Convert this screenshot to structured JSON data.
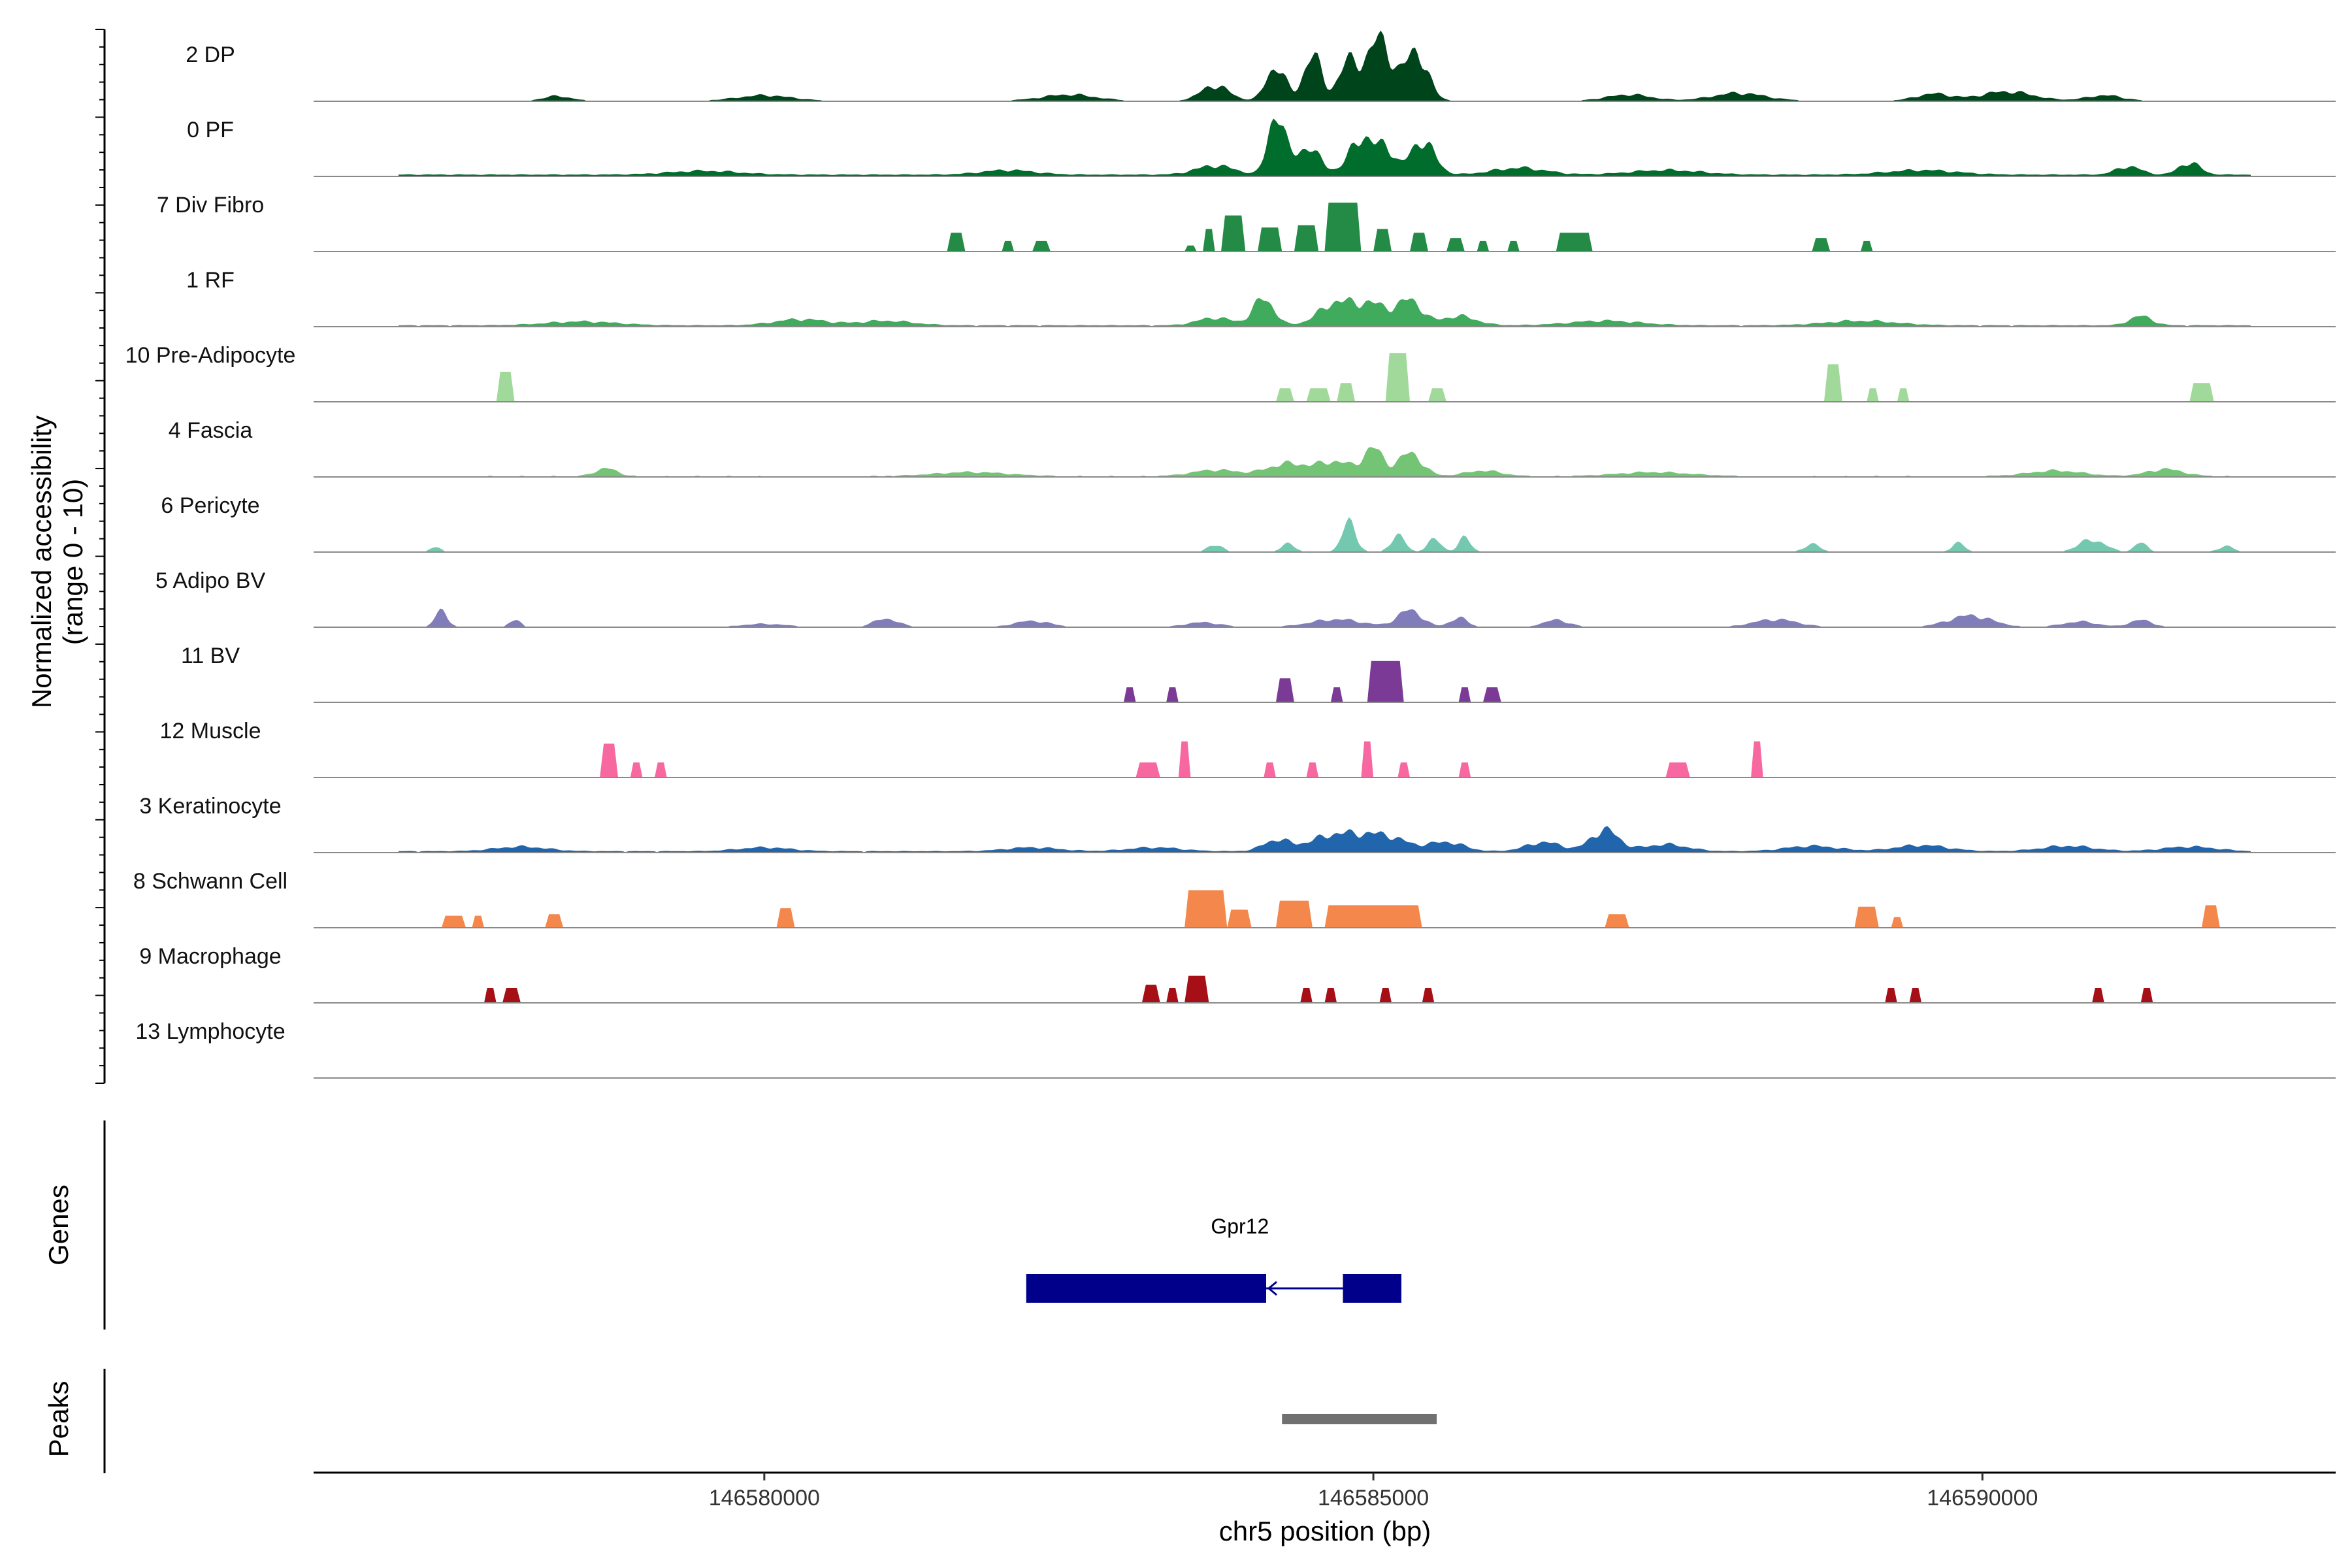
{
  "chart_data": {
    "type": "area",
    "title": "",
    "ylabel": "Normalized accessibility\n(range 0 - 10)",
    "xlabel": "chr5 position (bp)",
    "ylim": [
      0,
      10
    ],
    "xlim": [
      146576300,
      146592900
    ],
    "x_ticks": [
      146580000,
      146585000,
      146590000
    ],
    "x_tick_labels": [
      "146580000",
      "146585000",
      "146590000"
    ],
    "genes_label": "Genes",
    "peaks_label": "Peaks",
    "tracks": [
      {
        "name": "2 DP",
        "color": "#00441b",
        "style": "smooth",
        "baseline": 0.05,
        "start": 146577200,
        "end": 146591800,
        "peaks": [
          [
            146584800,
            5,
            120
          ],
          [
            146584200,
            4.5,
            110
          ],
          [
            146585050,
            8,
            140
          ],
          [
            146585350,
            6.5,
            130
          ],
          [
            146584500,
            6,
            100
          ],
          [
            146583700,
            2,
            160
          ],
          [
            146590200,
            1.2,
            300
          ],
          [
            146588000,
            1,
            300
          ],
          [
            146589600,
            0.9,
            200
          ],
          [
            146582500,
            0.8,
            300
          ],
          [
            146587100,
            0.8,
            250
          ],
          [
            146591000,
            0.7,
            200
          ],
          [
            146578300,
            0.6,
            150
          ],
          [
            146580000,
            0.7,
            300
          ]
        ]
      },
      {
        "name": "0 PF",
        "color": "#006d2c",
        "style": "smooth",
        "baseline": 0.2,
        "start": 146577000,
        "end": 146592200,
        "peaks": [
          [
            146584200,
            8,
            90
          ],
          [
            146584900,
            5,
            130
          ],
          [
            146585400,
            4.5,
            140
          ],
          [
            146585100,
            3.5,
            100
          ],
          [
            146584450,
            3.5,
            160
          ],
          [
            146583700,
            1.2,
            220
          ],
          [
            146591700,
            1.6,
            120
          ],
          [
            146591200,
            1.1,
            140
          ],
          [
            146586200,
            0.9,
            300
          ],
          [
            146589500,
            0.6,
            400
          ],
          [
            146587400,
            0.6,
            400
          ],
          [
            146582000,
            0.6,
            300
          ],
          [
            146579500,
            0.5,
            400
          ]
        ]
      },
      {
        "name": "7 Div Fibro",
        "color": "#238b45",
        "style": "block",
        "start": 146577000,
        "end": 146592200,
        "blocks": [
          [
            146581500,
            146581650,
            2.5
          ],
          [
            146581950,
            146582050,
            1.4
          ],
          [
            146582200,
            146582350,
            1.4
          ],
          [
            146583450,
            146583550,
            0.8
          ],
          [
            146583600,
            146583700,
            3
          ],
          [
            146583750,
            146583950,
            4.8
          ],
          [
            146584050,
            146584250,
            3.2
          ],
          [
            146584350,
            146584550,
            3.5
          ],
          [
            146584600,
            146584900,
            6.5
          ],
          [
            146585000,
            146585150,
            3
          ],
          [
            146585300,
            146585450,
            2.5
          ],
          [
            146585600,
            146585750,
            1.8
          ],
          [
            146585850,
            146585950,
            1.4
          ],
          [
            146586100,
            146586200,
            1.4
          ],
          [
            146586500,
            146586800,
            2.5
          ],
          [
            146588600,
            146588750,
            1.8
          ],
          [
            146589000,
            146589100,
            1.4
          ]
        ]
      },
      {
        "name": "1 RF",
        "color": "#41ab5d",
        "style": "smooth",
        "baseline": 0.15,
        "start": 146577000,
        "end": 146592200,
        "peaks": [
          [
            146584100,
            3.5,
            120
          ],
          [
            146584700,
            3,
            200
          ],
          [
            146585000,
            2.6,
            180
          ],
          [
            146585300,
            3.2,
            140
          ],
          [
            146583700,
            1,
            200
          ],
          [
            146585700,
            1.2,
            200
          ],
          [
            146580300,
            0.8,
            300
          ],
          [
            146581000,
            0.6,
            300
          ],
          [
            146591300,
            1.2,
            130
          ],
          [
            146589000,
            0.6,
            400
          ],
          [
            146586900,
            0.6,
            400
          ],
          [
            146578500,
            0.5,
            400
          ]
        ]
      },
      {
        "name": "10 Pre-Adipocyte",
        "color": "#a1d99b",
        "style": "block",
        "start": 146577000,
        "end": 146592200,
        "blocks": [
          [
            146577800,
            146577950,
            4
          ],
          [
            146584200,
            146584350,
            1.8
          ],
          [
            146584450,
            146584650,
            1.8
          ],
          [
            146584700,
            146584850,
            2.5
          ],
          [
            146585100,
            146585300,
            6.5
          ],
          [
            146585450,
            146585600,
            1.8
          ],
          [
            146588700,
            146588850,
            5
          ],
          [
            146589050,
            146589150,
            1.8
          ],
          [
            146589300,
            146589400,
            1.8
          ],
          [
            146591700,
            146591900,
            2.5
          ]
        ]
      },
      {
        "name": "4 Fascia",
        "color": "#74c476",
        "style": "smooth",
        "baseline": 0.1,
        "start": 146577000,
        "end": 146592200,
        "peaks": [
          [
            146585000,
            3.5,
            110
          ],
          [
            146585300,
            3,
            140
          ],
          [
            146584300,
            1.6,
            250
          ],
          [
            146584700,
            1.8,
            200
          ],
          [
            146583700,
            0.8,
            250
          ],
          [
            146585900,
            0.7,
            200
          ],
          [
            146578700,
            1,
            120
          ],
          [
            146591500,
            0.9,
            200
          ],
          [
            146590600,
            0.7,
            300
          ],
          [
            146587300,
            0.5,
            400
          ],
          [
            146581700,
            0.5,
            400
          ]
        ]
      },
      {
        "name": "6 Pericyte",
        "color": "#74c8b0",
        "style": "smooth",
        "baseline": 0.0,
        "start": 146577000,
        "end": 146592200,
        "peaks": [
          [
            146584800,
            3.8,
            80
          ],
          [
            146585200,
            2.2,
            80
          ],
          [
            146585500,
            1.6,
            80
          ],
          [
            146584300,
            1,
            80
          ],
          [
            146585750,
            1.8,
            70
          ],
          [
            146583700,
            1,
            80
          ],
          [
            146590900,
            1.6,
            150
          ],
          [
            146588600,
            1,
            90
          ],
          [
            146589800,
            1.2,
            70
          ],
          [
            146591300,
            1.2,
            70
          ],
          [
            146577300,
            0.6,
            60
          ],
          [
            146592000,
            0.7,
            90
          ]
        ]
      },
      {
        "name": "5 Adipo BV",
        "color": "#807dba",
        "style": "smooth",
        "baseline": 0.0,
        "start": 146577000,
        "end": 146592200,
        "peaks": [
          [
            146577350,
            2.2,
            70
          ],
          [
            146577950,
            1,
            60
          ],
          [
            146580000,
            0.4,
            250
          ],
          [
            146581000,
            1.1,
            140
          ],
          [
            146582200,
            0.8,
            200
          ],
          [
            146583600,
            0.6,
            200
          ],
          [
            146584700,
            1,
            300
          ],
          [
            146585300,
            2.2,
            140
          ],
          [
            146585700,
            1.2,
            100
          ],
          [
            146586500,
            0.9,
            150
          ],
          [
            146588300,
            1,
            250
          ],
          [
            146589900,
            1.5,
            250
          ],
          [
            146590800,
            0.7,
            200
          ],
          [
            146591300,
            0.9,
            130
          ]
        ]
      },
      {
        "name": "11 BV",
        "color": "#7a3a96",
        "style": "block",
        "start": 146577000,
        "end": 146592200,
        "blocks": [
          [
            146582950,
            146583050,
            2
          ],
          [
            146583300,
            146583400,
            2
          ],
          [
            146584200,
            146584350,
            3.2
          ],
          [
            146584650,
            146584750,
            2
          ],
          [
            146584950,
            146585250,
            5.5
          ],
          [
            146585700,
            146585800,
            2
          ],
          [
            146585900,
            146586050,
            2
          ]
        ]
      },
      {
        "name": "12 Muscle",
        "color": "#f768a1",
        "style": "block",
        "start": 146577000,
        "end": 146592200,
        "blocks": [
          [
            146578650,
            146578800,
            4.5
          ],
          [
            146578900,
            146579000,
            2
          ],
          [
            146579100,
            146579200,
            2
          ],
          [
            146583050,
            146583250,
            2
          ],
          [
            146583400,
            146583500,
            4.8
          ],
          [
            146584100,
            146584200,
            2
          ],
          [
            146584450,
            146584550,
            2
          ],
          [
            146584900,
            146585000,
            4.8
          ],
          [
            146585200,
            146585300,
            2
          ],
          [
            146585700,
            146585800,
            2
          ],
          [
            146587400,
            146587600,
            2
          ],
          [
            146588100,
            146588200,
            4.8
          ]
        ]
      },
      {
        "name": "3 Keratinocyte",
        "color": "#2166ac",
        "style": "smooth",
        "baseline": 0.15,
        "start": 146577000,
        "end": 146592200,
        "peaks": [
          [
            146584700,
            2.2,
            300
          ],
          [
            146585100,
            1.8,
            250
          ],
          [
            146585600,
            1.2,
            200
          ],
          [
            146584200,
            1.4,
            150
          ],
          [
            146586900,
            2.8,
            160
          ],
          [
            146586400,
            1.2,
            200
          ],
          [
            146587400,
            0.9,
            250
          ],
          [
            146588600,
            0.7,
            300
          ],
          [
            146589500,
            0.8,
            300
          ],
          [
            146590700,
            0.7,
            300
          ],
          [
            146591700,
            0.6,
            300
          ],
          [
            146578000,
            0.6,
            300
          ],
          [
            146580000,
            0.5,
            300
          ],
          [
            146582200,
            0.5,
            300
          ],
          [
            146583200,
            0.5,
            300
          ]
        ]
      },
      {
        "name": "8 Schwann Cell",
        "color": "#f4874b",
        "style": "block",
        "start": 146577000,
        "end": 146592200,
        "blocks": [
          [
            146577350,
            146577550,
            1.6
          ],
          [
            146577600,
            146577700,
            1.6
          ],
          [
            146578200,
            146578350,
            1.8
          ],
          [
            146580100,
            146580250,
            2.6
          ],
          [
            146583450,
            146583800,
            5
          ],
          [
            146583800,
            146584000,
            2.4
          ],
          [
            146584200,
            146584500,
            3.6
          ],
          [
            146584600,
            146585400,
            3
          ],
          [
            146586900,
            146587100,
            1.8
          ],
          [
            146588950,
            146589150,
            2.8
          ],
          [
            146589250,
            146589350,
            1.4
          ],
          [
            146591800,
            146591950,
            3
          ]
        ]
      },
      {
        "name": "9 Macrophage",
        "color": "#a50f15",
        "style": "block",
        "start": 146577000,
        "end": 146592200,
        "blocks": [
          [
            146577700,
            146577800,
            2
          ],
          [
            146577850,
            146578000,
            2
          ],
          [
            146583100,
            146583250,
            2.4
          ],
          [
            146583300,
            146583400,
            2
          ],
          [
            146583450,
            146583650,
            3.6
          ],
          [
            146584400,
            146584500,
            2
          ],
          [
            146584600,
            146584700,
            2
          ],
          [
            146585050,
            146585150,
            2
          ],
          [
            146585400,
            146585500,
            2
          ],
          [
            146589200,
            146589300,
            2
          ],
          [
            146589400,
            146589500,
            2
          ],
          [
            146590900,
            146591000,
            2
          ],
          [
            146591300,
            146591400,
            2
          ]
        ]
      },
      {
        "name": "13 Lymphocyte",
        "color": "#555555",
        "style": "none"
      }
    ],
    "gene": {
      "name": "Gpr12",
      "color": "#00008b",
      "strand": "-",
      "exons": [
        [
          146582150,
          146584120
        ],
        [
          146584750,
          146585230
        ]
      ]
    },
    "peaks_track": [
      {
        "start": 146584250,
        "end": 146585520,
        "color": "#707070"
      }
    ]
  }
}
